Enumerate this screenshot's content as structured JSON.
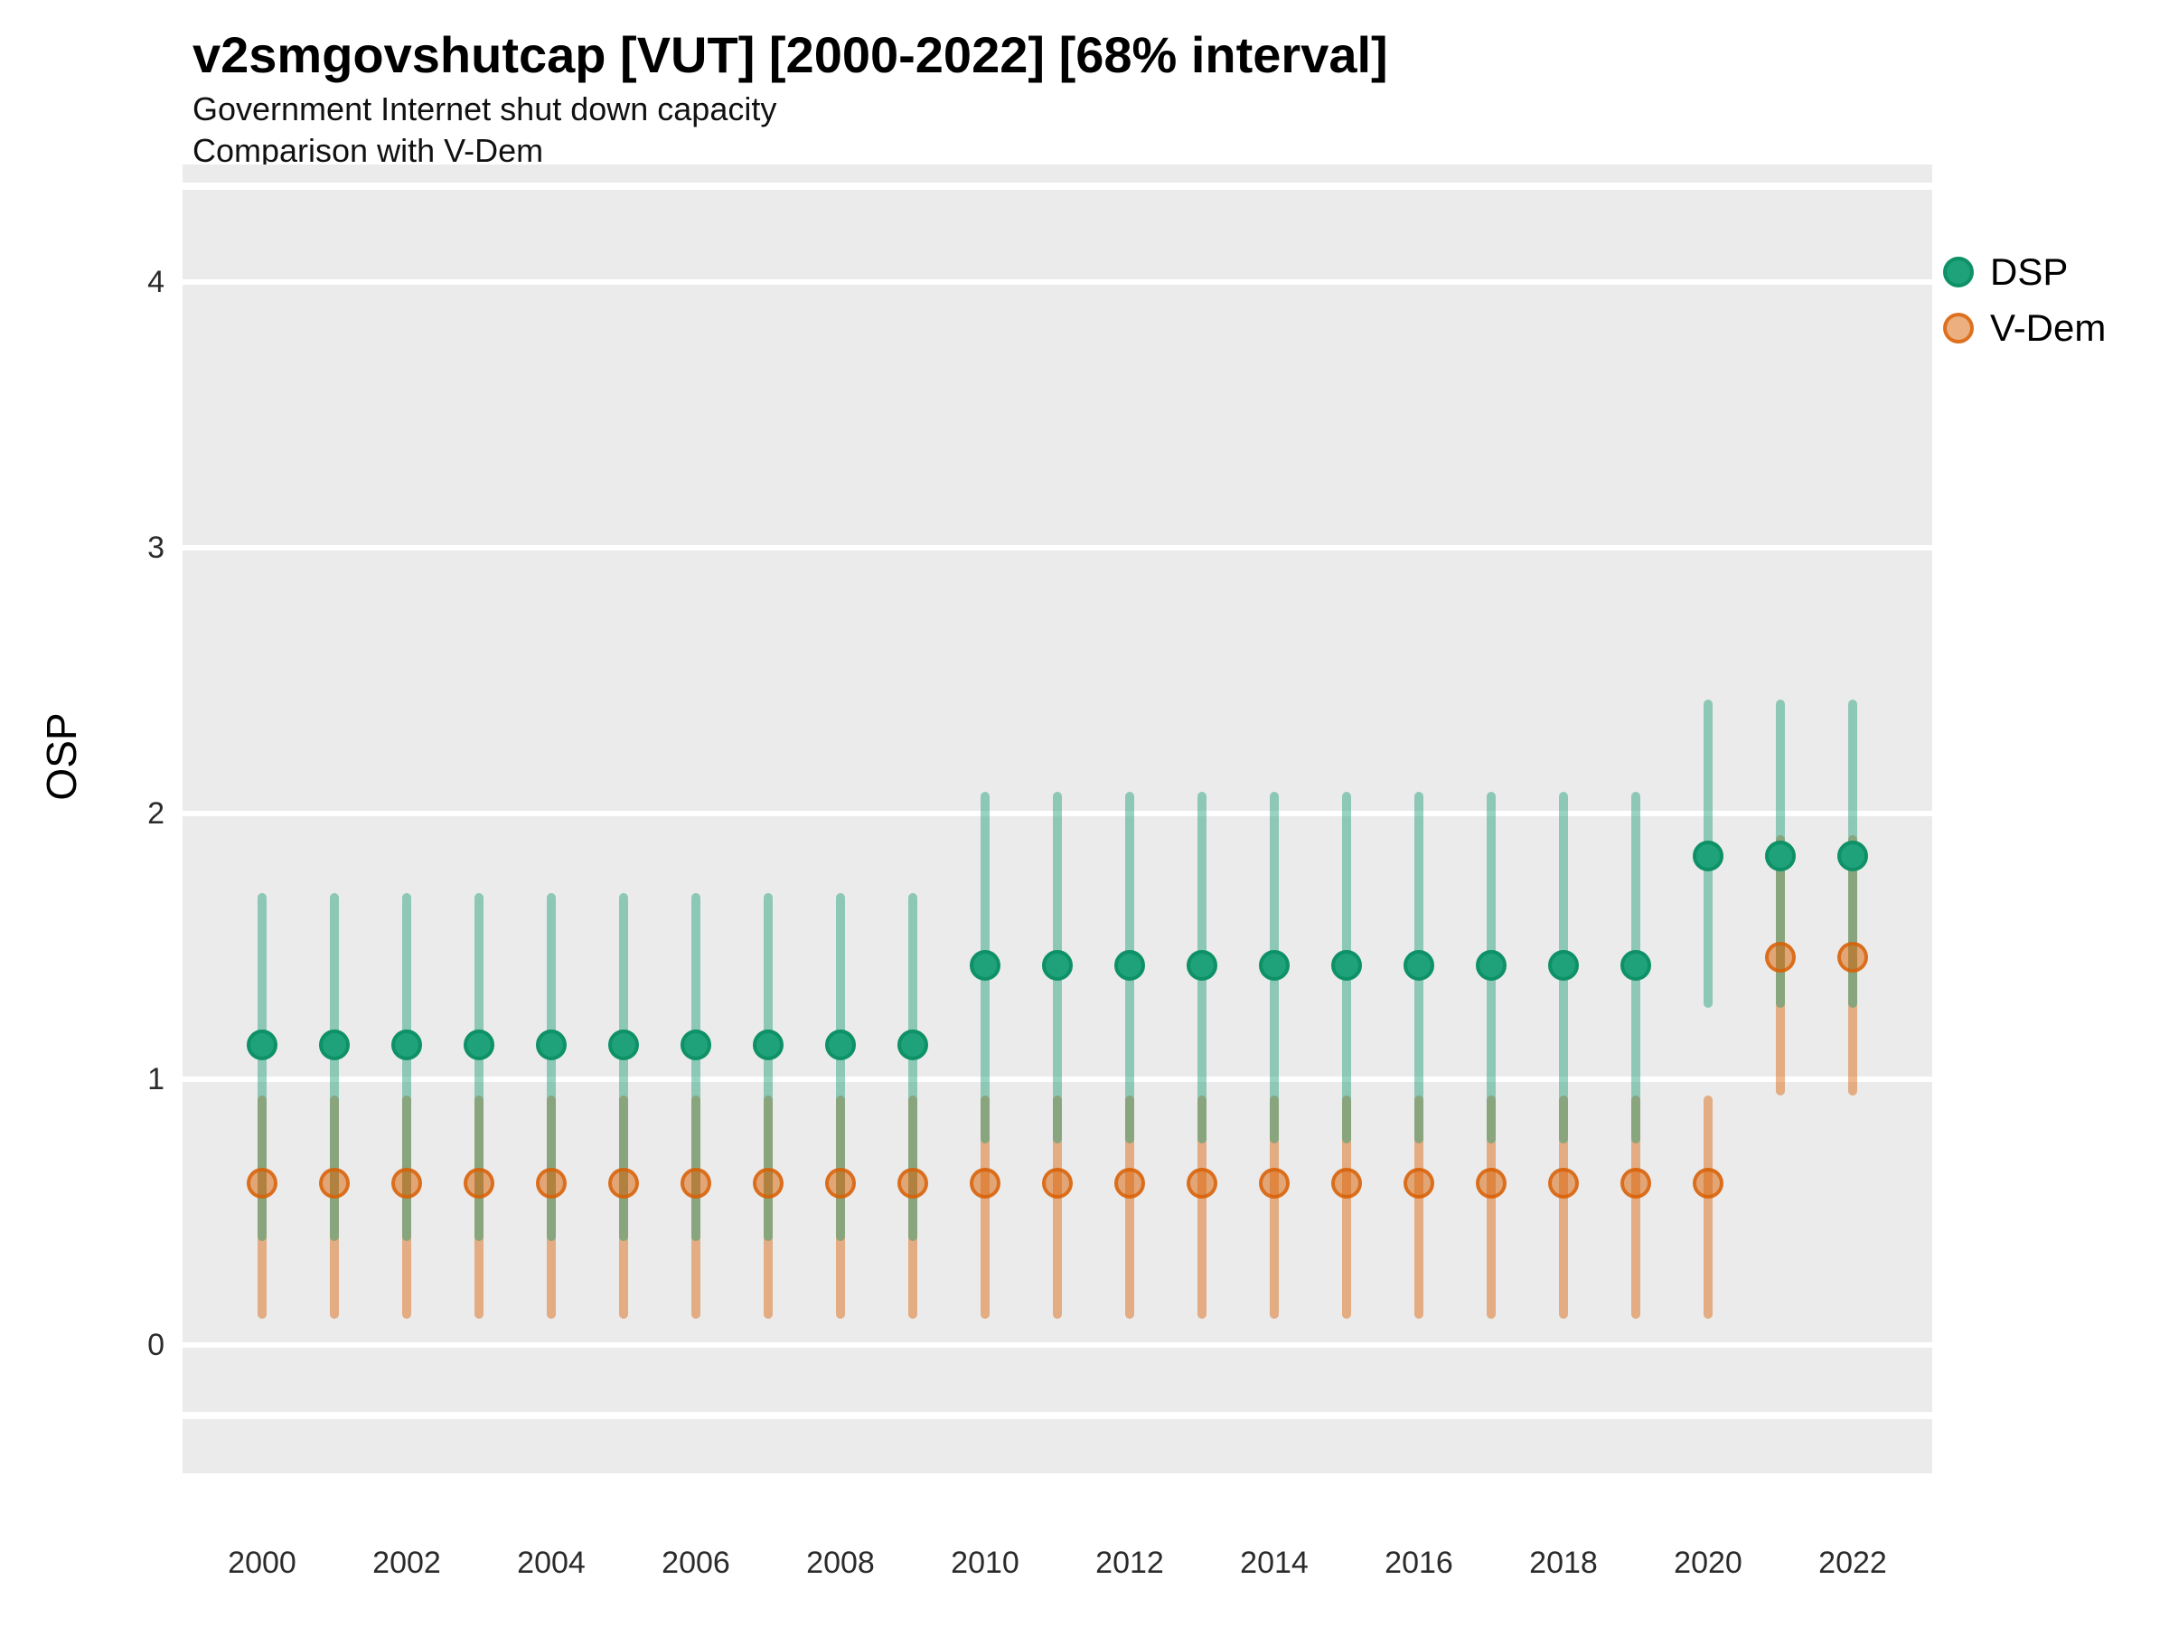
{
  "title": "v2smgovshutcap [VUT] [2000-2022] [68% interval]",
  "subtitle_line1": "Government Internet shut down capacity",
  "subtitle_line2": "Comparison with V-Dem",
  "y_axis_title": "OSP",
  "legend": {
    "items": [
      {
        "label": "DSP",
        "key_fill": "#1FA179",
        "key_border": "#0E9166"
      },
      {
        "label": "V-Dem",
        "key_fill": "rgba(217,95,2,0.5)",
        "key_border": "rgba(217,95,2,0.78)"
      }
    ]
  },
  "colors": {
    "panel_background": "#EBEBEB",
    "gridline": "#FFFFFF",
    "dsp_base": "#1B9E77",
    "vdem_base": "#D95F02",
    "dsp_ci_line": "rgba(27,158,119,0.45)",
    "vdem_ci_line": "rgba(217,95,2,0.45)",
    "dsp_point_fill": "#1FA179",
    "dsp_point_border": "#0E9166",
    "vdem_point_fill": "rgba(217,95,2,0.5)",
    "vdem_point_border": "rgba(217,95,2,0.78)"
  },
  "chart_data": {
    "type": "pointrange",
    "title": "v2smgovshutcap [VUT] [2000-2022] [68% interval]",
    "subtitle": [
      "Government Internet shut down capacity",
      "Comparison with V-Dem"
    ],
    "interval": "68%",
    "xlabel": "",
    "ylabel": "OSP",
    "x": [
      2000,
      2001,
      2002,
      2003,
      2004,
      2005,
      2006,
      2007,
      2008,
      2009,
      2010,
      2011,
      2012,
      2013,
      2014,
      2015,
      2016,
      2017,
      2018,
      2019,
      2020,
      2021,
      2022
    ],
    "x_tick_labels": [
      "2000",
      "2002",
      "2004",
      "2006",
      "2008",
      "2010",
      "2012",
      "2014",
      "2016",
      "2018",
      "2020",
      "2022"
    ],
    "x_tick_years": [
      2000,
      2002,
      2004,
      2006,
      2008,
      2010,
      2012,
      2014,
      2016,
      2018,
      2020,
      2022
    ],
    "y_ticks": [
      0,
      1,
      2,
      3,
      4
    ],
    "ylim": [
      -0.25,
      4.35
    ],
    "grid": "major-horizontal",
    "legend_position": "top-right",
    "series": [
      {
        "name": "DSP",
        "estimate": [
          1.13,
          1.13,
          1.13,
          1.13,
          1.13,
          1.13,
          1.13,
          1.13,
          1.13,
          1.13,
          1.43,
          1.43,
          1.43,
          1.43,
          1.43,
          1.43,
          1.43,
          1.43,
          1.43,
          1.43,
          1.84,
          1.84,
          1.84
        ],
        "lo": [
          0.39,
          0.39,
          0.39,
          0.39,
          0.39,
          0.39,
          0.39,
          0.39,
          0.39,
          0.39,
          0.76,
          0.76,
          0.76,
          0.76,
          0.76,
          0.76,
          0.76,
          0.76,
          0.76,
          0.76,
          1.27,
          1.27,
          1.27
        ],
        "hi": [
          1.7,
          1.7,
          1.7,
          1.7,
          1.7,
          1.7,
          1.7,
          1.7,
          1.7,
          1.7,
          2.08,
          2.08,
          2.08,
          2.08,
          2.08,
          2.08,
          2.08,
          2.08,
          2.08,
          2.08,
          2.43,
          2.43,
          2.43
        ]
      },
      {
        "name": "V-Dem",
        "estimate": [
          0.61,
          0.61,
          0.61,
          0.61,
          0.61,
          0.61,
          0.61,
          0.61,
          0.61,
          0.61,
          0.61,
          0.61,
          0.61,
          0.61,
          0.61,
          0.61,
          0.61,
          0.61,
          0.61,
          0.61,
          0.61,
          1.46,
          1.46
        ],
        "lo": [
          0.1,
          0.1,
          0.1,
          0.1,
          0.1,
          0.1,
          0.1,
          0.1,
          0.1,
          0.1,
          0.1,
          0.1,
          0.1,
          0.1,
          0.1,
          0.1,
          0.1,
          0.1,
          0.1,
          0.1,
          0.1,
          0.94,
          0.94
        ],
        "hi": [
          0.94,
          0.94,
          0.94,
          0.94,
          0.94,
          0.94,
          0.94,
          0.94,
          0.94,
          0.94,
          0.94,
          0.94,
          0.94,
          0.94,
          0.94,
          0.94,
          0.94,
          0.94,
          0.94,
          0.94,
          0.94,
          1.92,
          1.92
        ]
      }
    ]
  }
}
